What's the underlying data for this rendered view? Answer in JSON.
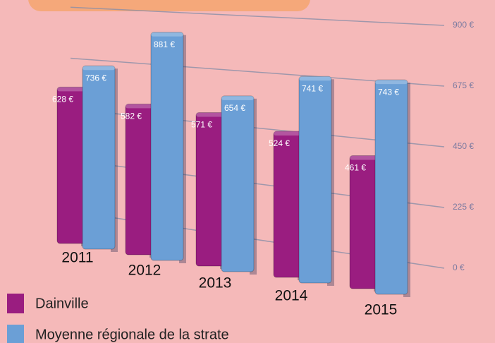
{
  "chart_data": {
    "type": "bar",
    "categories": [
      "2011",
      "2012",
      "2013",
      "2014",
      "2015"
    ],
    "series": [
      {
        "name": "Dainville",
        "color": "#9a1d80",
        "values": [
          628,
          582,
          571,
          524,
          461
        ],
        "value_labels": [
          "628 €",
          "582 €",
          "571 €",
          "524 €",
          "461 €"
        ]
      },
      {
        "name": "Moyenne régionale de la strate",
        "color": "#6b9fd6",
        "values": [
          736,
          881,
          654,
          741,
          743
        ],
        "value_labels": [
          "736 €",
          "881 €",
          "654 €",
          "741 €",
          "743 €"
        ]
      }
    ],
    "ylim": [
      0,
      900
    ],
    "yticks": [
      {
        "value": 0,
        "label": "0 €"
      },
      {
        "value": 225,
        "label": "225 €"
      },
      {
        "value": 450,
        "label": "450 €"
      },
      {
        "value": 675,
        "label": "675 €"
      },
      {
        "value": 900,
        "label": "900 €"
      }
    ],
    "grid": true,
    "legend": "bottom-left"
  }
}
